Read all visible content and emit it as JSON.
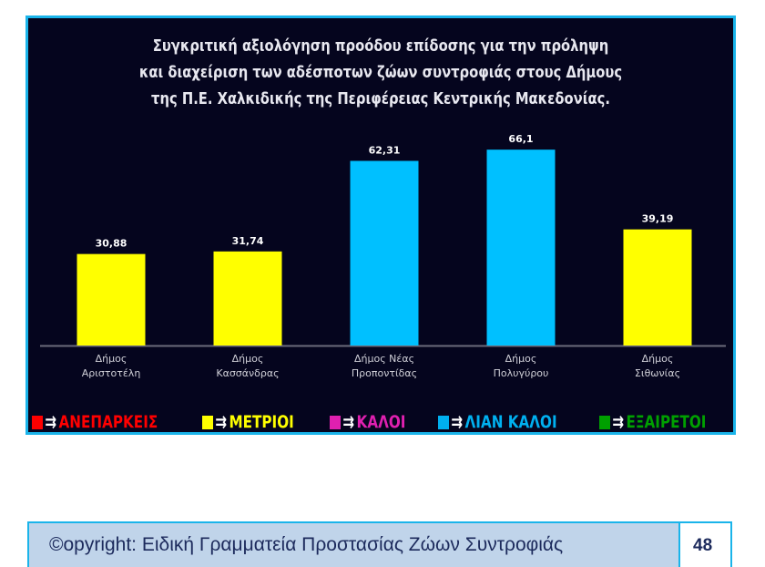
{
  "chart_data": {
    "type": "bar",
    "title": "Συγκριτική αξιολόγηση προόδου επίδοσης για την πρόληψη και διαχείριση των αδέσποτων ζώων συντροφιάς στους Δήμους της Π.Ε. Χαλκιδικής της Περιφέρειας Κεντρικής Μακεδονίας.",
    "title_lines": [
      "Συγκριτική αξιολόγηση προόδου επίδοσης για την πρόληψη",
      "και διαχείριση των αδέσποτων ζώων συντροφιάς στους Δήμους",
      "της Π.Ε. Χαλκιδικής της Περιφέρειας Κεντρικής Μακεδονίας."
    ],
    "categories": [
      [
        "Δήμος",
        "Αριστοτέλη"
      ],
      [
        "Δήμος",
        "Κασσάνδρας"
      ],
      [
        "Δήμος Νέας",
        "Προποντίδας"
      ],
      [
        "Δήμος",
        "Πολυγύρου"
      ],
      [
        "Δήμος",
        "Σιθωνίας"
      ]
    ],
    "values": [
      30.88,
      31.74,
      62.31,
      66.1,
      39.19
    ],
    "value_labels": [
      "30,88",
      "31,74",
      "62,31",
      "66,1",
      "39,19"
    ],
    "bar_colors": [
      "#ffff00",
      "#ffff00",
      "#00c0ff",
      "#00c0ff",
      "#ffff00"
    ],
    "xlabel": "",
    "ylabel": "",
    "ylim": [
      0,
      70
    ],
    "grid": false,
    "legend": [
      {
        "label": "ΑΝΕΠΑΡΚΕΙΣ",
        "color": "#ff0000"
      },
      {
        "label": "ΜΕΤΡΙΟΙ",
        "color": "#ffff00"
      },
      {
        "label": "ΚΑΛΟΙ",
        "color": "#e020b0"
      },
      {
        "label": "ΛΙΑΝ ΚΑΛΟΙ",
        "color": "#00b0f0"
      },
      {
        "label": "ΕΞΑΙΡΕΤΟΙ",
        "color": "#00a000"
      }
    ],
    "legend_arrow": "⇉"
  },
  "footer": {
    "copyright": "©opyright: Ειδική Γραμματεία Προστασίας Ζώων Συντροφιάς",
    "page_number": "48"
  }
}
